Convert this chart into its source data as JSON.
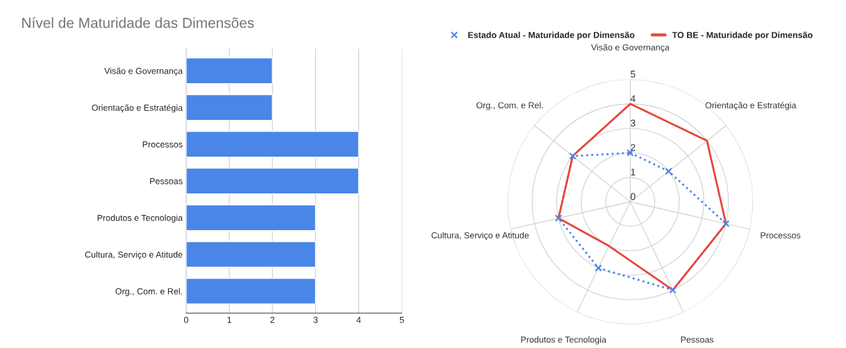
{
  "chart_data": [
    {
      "type": "bar",
      "orientation": "horizontal",
      "title": "Nível de Maturidade das Dimensões",
      "categories": [
        "Visão e Governança",
        "Orientação e Estratégia",
        "Processos",
        "Pessoas",
        "Produtos e Tecnologia",
        "Cultura, Serviço e Atitude",
        "Org., Com. e Rel."
      ],
      "values": [
        2,
        2,
        4,
        4,
        3,
        3,
        3
      ],
      "color": "#4a86e8",
      "xlim": [
        0,
        5
      ],
      "xticks": [
        0,
        1,
        2,
        3,
        4,
        5
      ],
      "grid": "x"
    },
    {
      "type": "radar",
      "categories": [
        "Visão e Governança",
        "Orientação e Estratégia",
        "Processos",
        "Pessoas",
        "Produtos e Tecnologia",
        "Cultura, Serviço e Atitude",
        "Org., Com. e Rel."
      ],
      "series": [
        {
          "name": "Estado Atual - Maturidade por Dimensão",
          "color": "#4a86e8",
          "marker": "cross",
          "line_style": "dotted",
          "values": [
            2,
            2,
            4,
            4,
            3,
            3,
            3
          ]
        },
        {
          "name": "TO BE - Maturidade por Dimensão",
          "color": "#e8453c",
          "marker": "none",
          "line_style": "solid",
          "values": [
            4,
            4,
            4,
            4,
            2,
            3,
            3
          ]
        }
      ],
      "ylim": [
        0,
        5
      ],
      "yticks": [
        0,
        1,
        2,
        3,
        4,
        5
      ],
      "grid": true,
      "legend": "top"
    }
  ]
}
